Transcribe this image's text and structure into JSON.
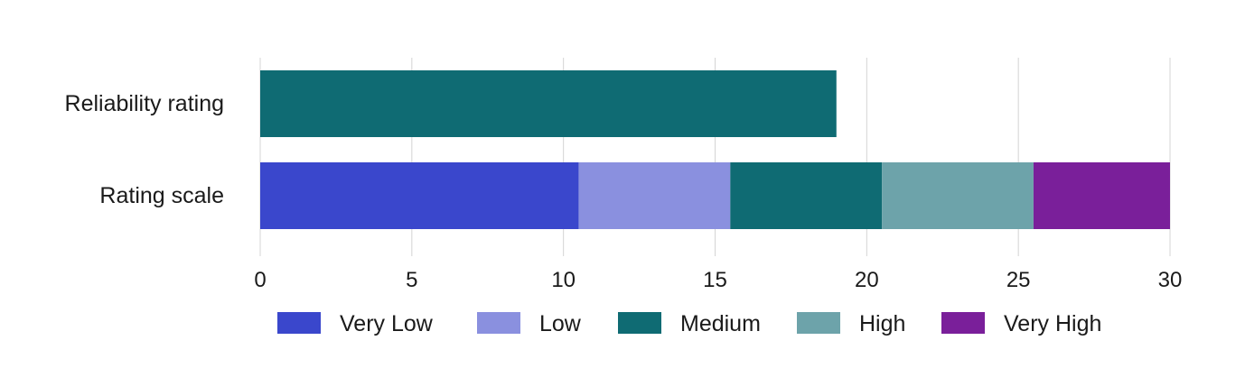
{
  "chart_data": {
    "type": "bar",
    "orientation": "horizontal",
    "stacked": true,
    "categories": [
      "Reliability rating",
      "Rating scale"
    ],
    "series": [
      {
        "name": "Very Low",
        "color": "#3a47cc",
        "values": [
          0,
          10.5
        ]
      },
      {
        "name": "Low",
        "color": "#8a90df",
        "values": [
          0,
          5
        ]
      },
      {
        "name": "Medium",
        "color": "#0f6b73",
        "values": [
          19,
          5
        ]
      },
      {
        "name": "High",
        "color": "#6da3aa",
        "values": [
          0,
          5
        ]
      },
      {
        "name": "Very High",
        "color": "#7a1f9a",
        "values": [
          0,
          4.5
        ]
      }
    ],
    "xlim": [
      0,
      30
    ],
    "xticks": [
      "0",
      "5",
      "10",
      "15",
      "20",
      "25",
      "30"
    ],
    "grid": true,
    "legend_position": "bottom",
    "title": "",
    "xlabel": "",
    "ylabel": ""
  }
}
